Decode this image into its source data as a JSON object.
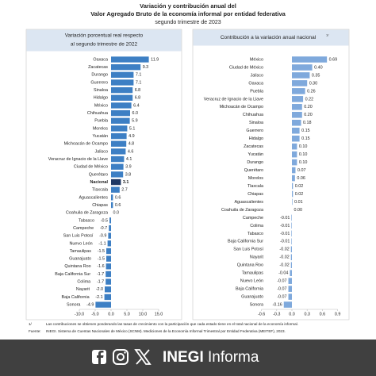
{
  "title": [
    "Variación y contribución anual del",
    "Valor Agregado Bruto de la economía informal por entidad federativa",
    "segundo trimestre de 2023"
  ],
  "chart_data": [
    {
      "type": "bar",
      "orientation": "horizontal",
      "title": [
        "Variación porcentual real respecto",
        "al segundo trimestre de 2022"
      ],
      "categories": [
        "Oaxaca",
        "Zacatecas",
        "Durango",
        "Guerrero",
        "Sinaloa",
        "Hidalgo",
        "México",
        "Chihuahua",
        "Puebla",
        "Morelos",
        "Yucatán",
        "Michoacán de Ocampo",
        "Jalisco",
        "Veracruz de Ignacio de la Llave",
        "Ciudad de México",
        "Querétaro",
        "Nacional",
        "Tlaxcala",
        "Aguascalientes",
        "Chiapas",
        "Coahuila de Zaragoza",
        "Tabasco",
        "Campeche",
        "San Luis Potosí",
        "Nuevo León",
        "Tamaulipas",
        "Guanajuato",
        "Quintana Roo",
        "Baja California Sur",
        "Colima",
        "Nayarit",
        "Baja California",
        "Sonora"
      ],
      "values": [
        11.9,
        9.3,
        7.1,
        7.1,
        6.8,
        6.8,
        6.4,
        6.0,
        5.9,
        5.1,
        4.9,
        4.8,
        4.6,
        4.1,
        3.9,
        3.8,
        3.1,
        2.7,
        0.6,
        0.6,
        0.0,
        -0.5,
        -0.7,
        -0.9,
        -1.1,
        -1.5,
        -1.5,
        -1.6,
        -1.7,
        -1.7,
        -2.0,
        -2.1,
        -4.9
      ],
      "value_labels": [
        "11.9",
        "9.3",
        "7.1",
        "7.1",
        "6.8",
        "6.8",
        "6.4",
        "6.0",
        "5.9",
        "5.1",
        "4.9",
        "4.8",
        "4.6",
        "4.1",
        "3.9",
        "3.8",
        "3.1",
        "2.7",
        "0.6",
        "0.6",
        "0.0",
        "-0.5",
        "-0.7",
        "-0.9",
        "-1.1",
        "-1.5",
        "-1.5",
        "-1.6",
        "-1.7",
        "-1.7",
        "-2.0",
        "-2.1",
        "-4.9"
      ],
      "colors": [
        "#3d7fc4",
        "#3d7fc4",
        "#3d7fc4",
        "#3d7fc4",
        "#3d7fc4",
        "#3d7fc4",
        "#3d7fc4",
        "#3d7fc4",
        "#3d7fc4",
        "#3d7fc4",
        "#3d7fc4",
        "#3d7fc4",
        "#3d7fc4",
        "#3d7fc4",
        "#3d7fc4",
        "#3d7fc4",
        "#1f3864",
        "#3d7fc4",
        "#3d7fc4",
        "#3d7fc4",
        "#3d7fc4",
        "#3d7fc4",
        "#3d7fc4",
        "#3d7fc4",
        "#3d7fc4",
        "#3d7fc4",
        "#3d7fc4",
        "#3d7fc4",
        "#3d7fc4",
        "#3d7fc4",
        "#3d7fc4",
        "#3d7fc4",
        "#3d7fc4"
      ],
      "xlim": [
        -10,
        15
      ],
      "xticks": [
        {
          "value": -10,
          "label": "-10.0"
        },
        {
          "value": -5,
          "label": "-5.0"
        },
        {
          "value": 0,
          "label": "0.0"
        },
        {
          "value": 5,
          "label": "5.0"
        },
        {
          "value": 10,
          "label": "10.0"
        },
        {
          "value": 15,
          "label": "15.0"
        }
      ]
    },
    {
      "type": "bar",
      "orientation": "horizontal",
      "title": [
        "Contribución a la variación anual nacional"
      ],
      "title_note": "1/",
      "categories": [
        "México",
        "Ciudad de México",
        "Jalisco",
        "Oaxaca",
        "Puebla",
        "Veracruz de Ignacio de la Llave",
        "Michoacán de Ocampo",
        "Chihuahua",
        "Sinaloa",
        "Guerrero",
        "Hidalgo",
        "Zacatecas",
        "Yucatán",
        "Durango",
        "Querétaro",
        "Morelos",
        "Tlaxcala",
        "Chiapas",
        "Aguascalientes",
        "Coahuila de Zaragoza",
        "Campeche",
        "Colima",
        "Tabasco",
        "Baja California Sur",
        "San Luis Potosí",
        "Nayarit",
        "Quintana Roo",
        "Tamaulipas",
        "Nuevo León",
        "Baja California",
        "Guanajuato",
        "Sonora"
      ],
      "values": [
        0.69,
        0.4,
        0.35,
        0.3,
        0.26,
        0.22,
        0.2,
        0.2,
        0.18,
        0.15,
        0.15,
        0.1,
        0.1,
        0.1,
        0.07,
        0.06,
        0.02,
        0.02,
        0.01,
        0.0,
        -0.01,
        -0.01,
        -0.01,
        -0.01,
        -0.02,
        -0.02,
        -0.02,
        -0.04,
        -0.07,
        -0.07,
        -0.07,
        -0.16
      ],
      "value_labels": [
        "0.69",
        "0.40",
        "0.35",
        "0.30",
        "0.26",
        "0.22",
        "0.20",
        "0.20",
        "0.18",
        "0.15",
        "0.15",
        "0.10",
        "0.10",
        "0.10",
        "0.07",
        "0.06",
        "0.02",
        "0.02",
        "0.01",
        "0.00",
        "-0.01",
        "-0.01",
        "-0.01",
        "-0.01",
        "-0.02",
        "-0.02",
        "-0.02",
        "-0.04",
        "-0.07",
        "-0.07",
        "-0.07",
        "-0.16"
      ],
      "color": "#7fa9dc",
      "xlim": [
        -0.6,
        0.9
      ],
      "xticks": [
        -0.6,
        -0.3,
        {
          "value": 0,
          "label": "0.0"
        },
        0.3,
        0.6,
        0.9
      ]
    }
  ],
  "notes": [
    {
      "marker": "1/",
      "text": "Las contribuciones se obtienen ponderando las tasas de crecimiento con la participación que cada estado tiene en el total nacional de la economía informal."
    },
    {
      "marker": "Fuente:",
      "text": "INEGI. Sistema de Cuentas Nacionales de México (SCNM). Mediciones de la Economía Informal Trimestral por Entidad Federativa (MEITEF), 2023."
    }
  ],
  "brand": {
    "name": "INEGI",
    "suffix": "Informa"
  }
}
